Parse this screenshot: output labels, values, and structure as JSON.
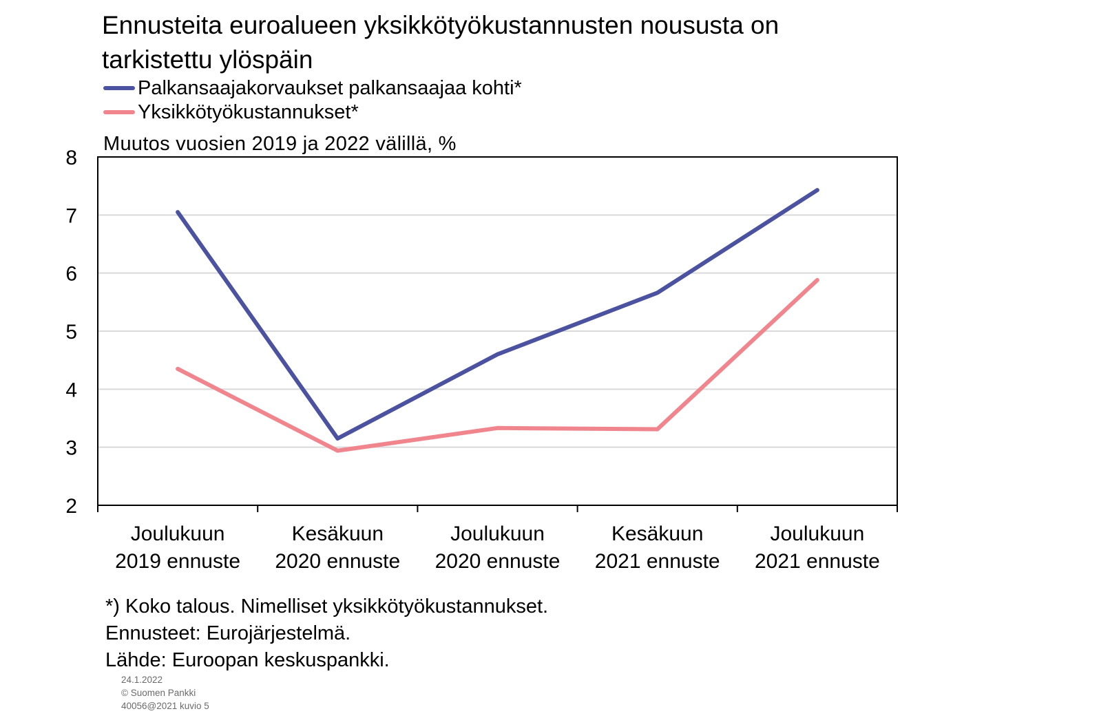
{
  "title_line1": "Ennusteita euroalueen yksikkötyökustannusten noususta on",
  "title_line2": "tarkistettu ylöspäin",
  "colors": {
    "series1": "#4b529f",
    "series2": "#f0858e",
    "grid": "#d9d9d9",
    "axis": "#000000"
  },
  "chart_data": {
    "type": "line",
    "title": "Ennusteita euroalueen yksikkötyökustannusten noususta on tarkistettu ylöspäin",
    "ylabel": "Muutos vuosien 2019 ja 2022 välillä, %",
    "xlabel": "",
    "ylim": [
      2,
      8
    ],
    "yticks": [
      "2",
      "3",
      "4",
      "5",
      "6",
      "7",
      "8"
    ],
    "grid": true,
    "legend_position": "top-left",
    "categories": [
      [
        "Joulukuun",
        "2019 ennuste"
      ],
      [
        "Kesäkuun",
        "2020 ennuste"
      ],
      [
        "Joulukuun",
        "2020 ennuste"
      ],
      [
        "Kesäkuun",
        "2021 ennuste"
      ],
      [
        "Joulukuun",
        "2021 ennuste"
      ]
    ],
    "series": [
      {
        "name": "Palkansaajakorvaukset palkansaajaa kohti*",
        "color": "#4b529f",
        "values": [
          7.05,
          3.15,
          4.6,
          5.66,
          7.43
        ]
      },
      {
        "name": "Yksikkötyökustannukset*",
        "color": "#f0858e",
        "values": [
          4.35,
          2.94,
          3.33,
          3.31,
          5.88
        ]
      }
    ]
  },
  "footnotes": {
    "line1": "*) Koko talous. Nimelliset yksikkötyökustannukset.",
    "line2": "Ennusteet: Eurojärjestelmä.",
    "line3": "Lähde: Euroopan keskuspankki."
  },
  "meta": {
    "date": "24.1.2022",
    "publisher": "© Suomen Pankki",
    "code": "40056@2021 kuvio 5"
  }
}
